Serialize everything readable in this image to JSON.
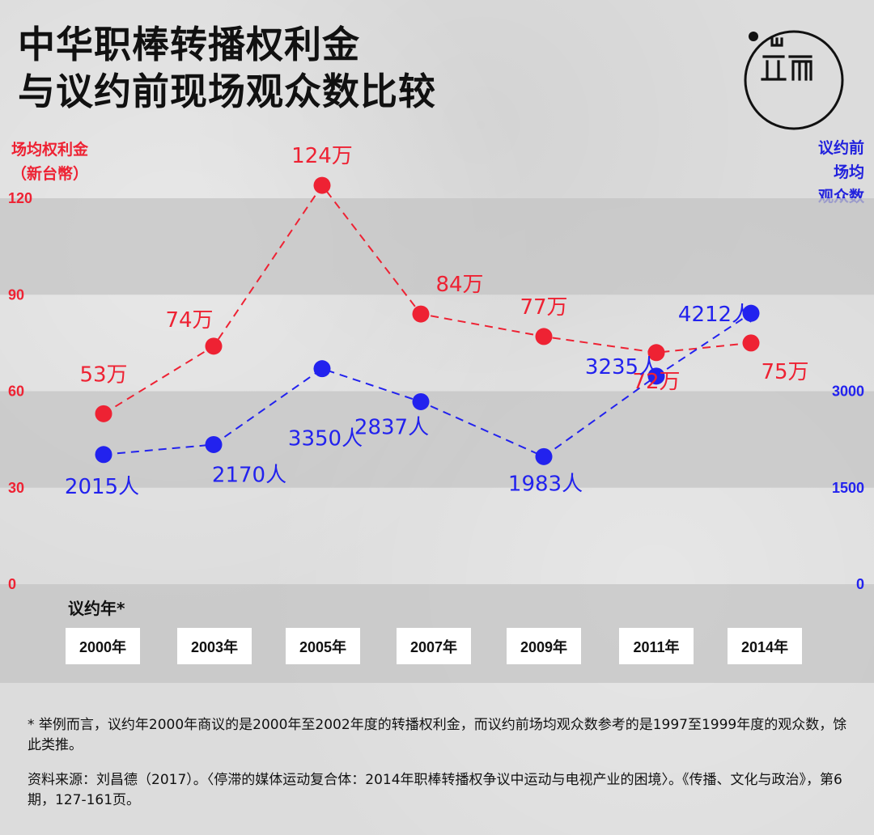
{
  "title": {
    "line1": "中华职棒转播权利金",
    "line2": "与议约前现场观众数比较"
  },
  "logo": {
    "glyph": "端",
    "icon": "initium-logo-icon"
  },
  "left_axis_title": [
    "场均权利金",
    "（新台幣）"
  ],
  "right_axis_title": [
    "议约前",
    "场均",
    "观众数"
  ],
  "year_heading": "议约年*",
  "years": [
    "2000年",
    "2003年",
    "2005年",
    "2007年",
    "2009年",
    "2011年",
    "2014年"
  ],
  "colors": {
    "rights_fee": "#ee2233",
    "attendance": "#2222ee",
    "band": "#c4c4c4"
  },
  "chart_data": {
    "type": "line",
    "categories": [
      "2000年",
      "2003年",
      "2005年",
      "2007年",
      "2009年",
      "2011年",
      "2014年"
    ],
    "series": [
      {
        "name": "场均权利金（新台幣）",
        "axis": "left",
        "values": [
          53,
          74,
          124,
          84,
          77,
          72,
          75
        ],
        "labels": [
          "53万",
          "74万",
          "124万",
          "84万",
          "77万",
          "72万",
          "75万"
        ],
        "style": "dashed"
      },
      {
        "name": "议约前场均观众数",
        "axis": "right",
        "values": [
          2015,
          2170,
          3350,
          2837,
          1983,
          3235,
          4212
        ],
        "labels": [
          "2015人",
          "2170人",
          "3350人",
          "2837人",
          "1983人",
          "3235人",
          "4212人"
        ],
        "style": "dashed"
      }
    ],
    "left_axis": {
      "title": "场均权利金（新台幣）",
      "ticks": [
        0,
        30,
        60,
        90,
        120
      ],
      "ylim": [
        0,
        120
      ]
    },
    "right_axis": {
      "title": "议约前场均观众数",
      "ticks": [
        0,
        1500,
        3000
      ],
      "ylim": [
        0,
        6000
      ]
    },
    "grid": "alternating bands",
    "legend": "none"
  },
  "notes": {
    "footnote": "* 举例而言，议约年2000年商议的是2000年至2002年度的转播权利金，而议约前场均观众数参考的是1997至1999年度的观众数，馀此类推。",
    "source": "资料来源：刘昌德（2017）。〈停滞的媒体运动复合体：2014年职棒转播权争议中运动与电视产业的困境〉。《传播、文化与政治》，第6期，127-161页。"
  }
}
